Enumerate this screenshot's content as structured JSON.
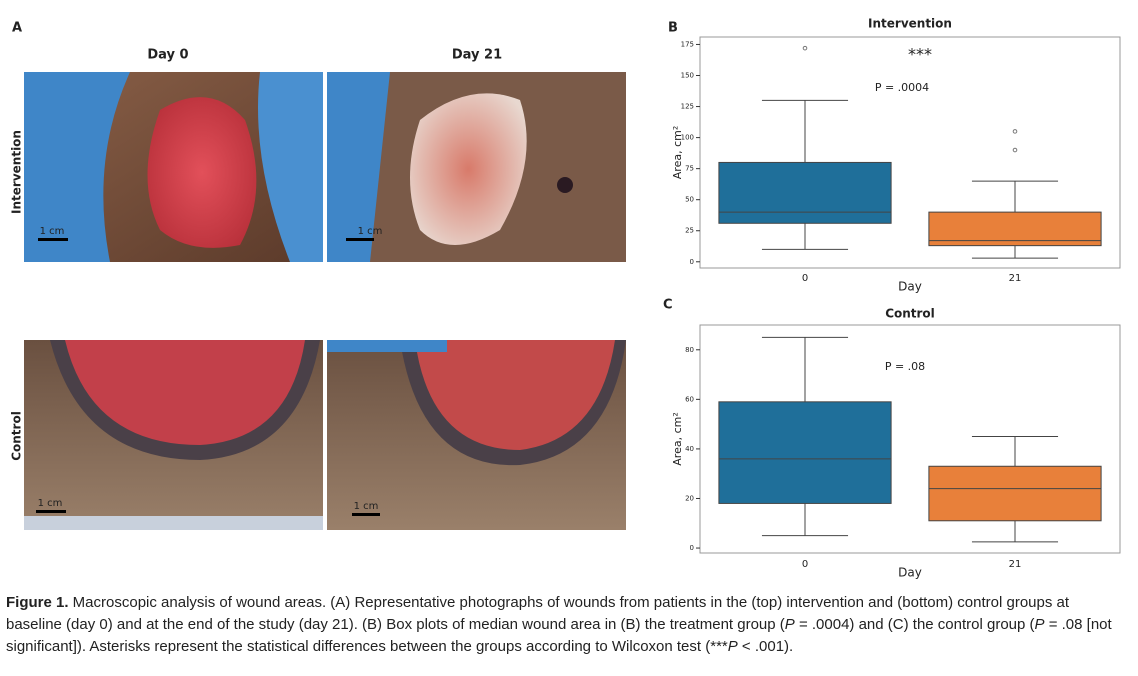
{
  "panel_a": {
    "label": "A",
    "columns": [
      "Day 0",
      "Day 21"
    ],
    "rows": [
      "Intervention",
      "Control"
    ],
    "scale_labels": [
      "1 cm",
      "1 cm",
      "1 cm",
      "1 cm"
    ]
  },
  "chart_data": [
    {
      "type": "box",
      "panel": "B",
      "title": "Intervention",
      "x_label": "Day",
      "y_label": "Area, cm²",
      "categories": [
        "0",
        "21"
      ],
      "boxes": [
        {
          "whislo": 10,
          "q1": 31,
          "med": 40,
          "q3": 80,
          "whishi": 130,
          "fliers": [
            172
          ]
        },
        {
          "whislo": 3,
          "q1": 13,
          "med": 17,
          "q3": 40,
          "whishi": 65,
          "fliers": [
            90,
            105
          ]
        }
      ],
      "colors": [
        "#1f6f9a",
        "#e8803a"
      ],
      "ylim": [
        -5,
        181
      ],
      "yticks": [
        0,
        25,
        50,
        75,
        100,
        125,
        150,
        175
      ],
      "annotations": [
        "***",
        "P = .0004"
      ]
    },
    {
      "type": "box",
      "panel": "C",
      "title": "Control",
      "x_label": "Day",
      "y_label": "Area, cm²",
      "categories": [
        "0",
        "21"
      ],
      "boxes": [
        {
          "whislo": 5,
          "q1": 18,
          "med": 36,
          "q3": 59,
          "whishi": 85,
          "fliers": []
        },
        {
          "whislo": 2.5,
          "q1": 11,
          "med": 24,
          "q3": 33,
          "whishi": 45,
          "fliers": []
        }
      ],
      "colors": [
        "#1f6f9a",
        "#e8803a"
      ],
      "ylim": [
        -2,
        90
      ],
      "yticks": [
        0,
        20,
        40,
        60,
        80
      ],
      "annotations": [
        "P = .08"
      ]
    }
  ],
  "caption": {
    "parts": [
      "Figure 1.",
      " Macroscopic analysis of wound areas. (A) Representative photographs of wounds from patients in the (top) intervention and (bottom) control groups at baseline (day 0) and at the end of the study (day 21). (B) Box plots of median wound area in (B) the treatment group (",
      "P",
      " = .0004) and (C) the control group (",
      "P",
      " = .08 [not significant]). Asterisks represent the statistical differences between the groups according to Wilcoxon test (***",
      "P",
      " < .001)."
    ]
  }
}
